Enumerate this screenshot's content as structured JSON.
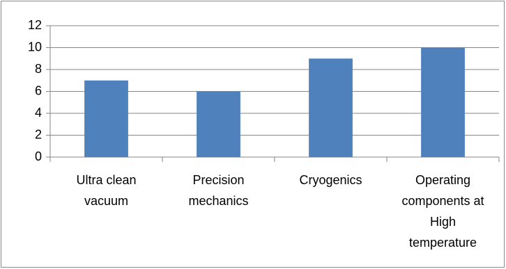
{
  "chart_data": {
    "type": "bar",
    "categories": [
      "Ultra clean vacuum",
      "Precision mechanics",
      "Cryogenics",
      "Operating components at High temperature"
    ],
    "values": [
      7,
      6,
      9,
      10
    ],
    "color": "#4f81bd",
    "ylim": [
      0,
      12
    ],
    "yticks": [
      0,
      2,
      4,
      6,
      8,
      10,
      12
    ],
    "grid": true
  }
}
